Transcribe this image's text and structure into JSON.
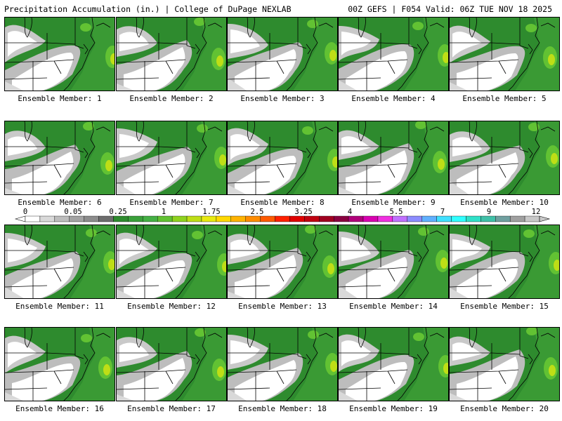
{
  "header": {
    "title": "Precipitation Accumulation (in.) | College of DuPage NEXLAB",
    "run_info": "00Z GEFS | F054 Valid: 06Z TUE NOV 18 2025"
  },
  "panels": [
    {
      "label": "Ensemble Member: 1"
    },
    {
      "label": "Ensemble Member: 2"
    },
    {
      "label": "Ensemble Member: 3"
    },
    {
      "label": "Ensemble Member: 4"
    },
    {
      "label": "Ensemble Member: 5"
    },
    {
      "label": "Ensemble Member: 6"
    },
    {
      "label": "Ensemble Member: 7"
    },
    {
      "label": "Ensemble Member: 8"
    },
    {
      "label": "Ensemble Member: 9"
    },
    {
      "label": "Ensemble Member: 10"
    },
    {
      "label": "Ensemble Member: 11"
    },
    {
      "label": "Ensemble Member: 12"
    },
    {
      "label": "Ensemble Member: 13"
    },
    {
      "label": "Ensemble Member: 14"
    },
    {
      "label": "Ensemble Member: 15"
    },
    {
      "label": "Ensemble Member: 16"
    },
    {
      "label": "Ensemble Member: 17"
    },
    {
      "label": "Ensemble Member: 18"
    },
    {
      "label": "Ensemble Member: 19"
    },
    {
      "label": "Ensemble Member: 20"
    }
  ],
  "colorbar": {
    "tick_labels": [
      "0",
      "0.05",
      "0.25",
      "1",
      "1.75",
      "2.5",
      "3.25",
      "4",
      "5.5",
      "7",
      "9",
      "12"
    ],
    "colors": [
      "#ffffff",
      "#d9d9d9",
      "#bdbdbd",
      "#a3a3a3",
      "#8c8c8c",
      "#6d6d6d",
      "#2e8b2e",
      "#3aa03a",
      "#45b045",
      "#62c233",
      "#8fd21f",
      "#bede16",
      "#e8ea10",
      "#ffd800",
      "#ffb300",
      "#ff8c00",
      "#ff5a00",
      "#ff2000",
      "#e00000",
      "#c00010",
      "#a00020",
      "#8a0040",
      "#b0007a",
      "#d800b0",
      "#f030e0",
      "#c070ff",
      "#8c8cff",
      "#60b0ff",
      "#40e0ff",
      "#30ffff",
      "#30e0c8",
      "#40c0a8",
      "#70a0a0",
      "#a0a0a0",
      "#c8c8c8"
    ]
  }
}
